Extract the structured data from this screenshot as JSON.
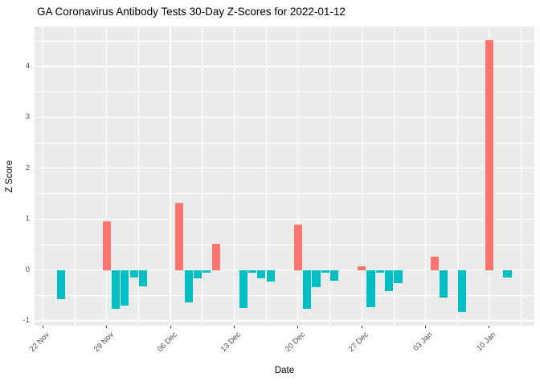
{
  "chart_data": {
    "type": "bar",
    "title": "GA Coronavirus Antibody Tests 30-Day Z-Scores for 2022-01-12",
    "xlabel": "Date",
    "ylabel": "Z Score",
    "x_start_date": "2021-11-22",
    "x_tick_labels": [
      "22 Nov",
      "29 Nov",
      "06 Dec",
      "13 Dec",
      "20 Dec",
      "27 Dec",
      "03 Jan",
      "10 Jan"
    ],
    "x_tick_days": [
      0,
      7,
      14,
      21,
      28,
      35,
      42,
      49
    ],
    "xlim_days": [
      -0.95,
      53.95
    ],
    "y_ticks": [
      -1,
      0,
      1,
      2,
      3,
      4
    ],
    "y_minor_ticks": [
      -0.5,
      0.5,
      1.5,
      2.5,
      3.5,
      4.5
    ],
    "ylim": [
      -1.1,
      4.79
    ],
    "grid": "on",
    "legend": "none",
    "bar_color_rule": "positive bars salmon, negative bars teal",
    "colors": {
      "positive": "#F8766D",
      "negative": "#00BFC4",
      "panel_bg": "#EBEBEB",
      "gridline": "#FFFFFF",
      "axis_text": "#4D4D4D",
      "tick_mark": "#333333",
      "title_text": "#000000",
      "background": "#FFFFFF"
    },
    "bars": [
      {
        "date": "2021-11-24",
        "value": -0.58
      },
      {
        "date": "2021-11-29",
        "value": 0.95
      },
      {
        "date": "2021-11-30",
        "value": -0.77
      },
      {
        "date": "2021-12-01",
        "value": -0.7
      },
      {
        "date": "2021-12-02",
        "value": -0.15
      },
      {
        "date": "2021-12-03",
        "value": -0.32
      },
      {
        "date": "2021-12-07",
        "value": 1.32
      },
      {
        "date": "2021-12-08",
        "value": -0.63
      },
      {
        "date": "2021-12-09",
        "value": -0.16
      },
      {
        "date": "2021-12-10",
        "value": -0.05
      },
      {
        "date": "2021-12-11",
        "value": 0.51
      },
      {
        "date": "2021-12-14",
        "value": -0.74
      },
      {
        "date": "2021-12-15",
        "value": -0.05
      },
      {
        "date": "2021-12-16",
        "value": -0.17
      },
      {
        "date": "2021-12-17",
        "value": -0.23
      },
      {
        "date": "2021-12-20",
        "value": 0.9
      },
      {
        "date": "2021-12-21",
        "value": -0.77
      },
      {
        "date": "2021-12-22",
        "value": -0.34
      },
      {
        "date": "2021-12-23",
        "value": -0.05
      },
      {
        "date": "2021-12-24",
        "value": -0.21
      },
      {
        "date": "2021-12-27",
        "value": 0.08
      },
      {
        "date": "2021-12-28",
        "value": -0.73
      },
      {
        "date": "2021-12-29",
        "value": -0.05
      },
      {
        "date": "2021-12-30",
        "value": -0.42
      },
      {
        "date": "2021-12-31",
        "value": -0.26
      },
      {
        "date": "2022-01-04",
        "value": 0.26
      },
      {
        "date": "2022-01-05",
        "value": -0.54
      },
      {
        "date": "2022-01-07",
        "value": -0.83
      },
      {
        "date": "2022-01-10",
        "value": 4.52
      },
      {
        "date": "2022-01-12",
        "value": -0.14
      }
    ]
  }
}
